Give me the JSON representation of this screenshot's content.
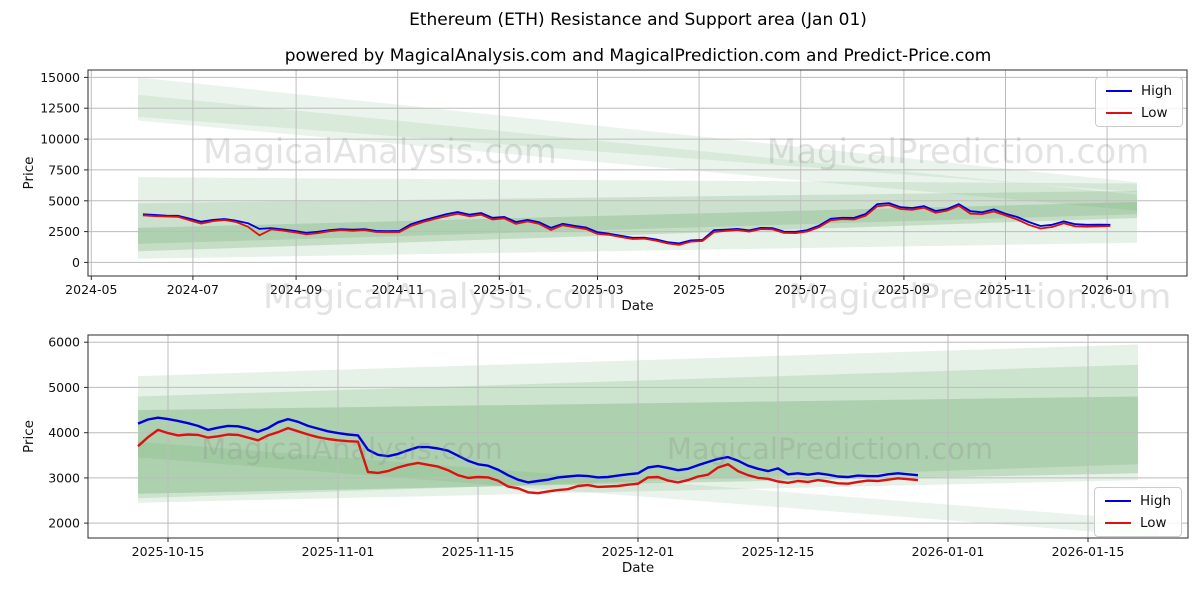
{
  "figure": {
    "title": "Ethereum (ETH) Resistance and Support area (Jan 01)",
    "subtitle": "powered by MagicalAnalysis.com and MagicalPrediction.com and Predict-Price.com"
  },
  "watermarks": {
    "analysis": "MagicalAnalysis.com",
    "prediction": "MagicalPrediction.com"
  },
  "legend": {
    "high": "High",
    "low": "Low"
  },
  "colors": {
    "high": "#0000dd",
    "low": "#dd1111",
    "band": "#3f9142",
    "grid": "#bcbcbc",
    "spine": "#2b2b2b",
    "text": "#111111"
  },
  "chart_data": [
    {
      "type": "line",
      "ylabel": "Price",
      "xlabel": "Date",
      "x_domain": [
        "2024-04-29",
        "2026-02-18"
      ],
      "y_domain": [
        -1100,
        15600
      ],
      "y_ticks": [
        0,
        2500,
        5000,
        7500,
        10000,
        12500,
        15000
      ],
      "x_ticks": [
        {
          "d": "2024-05-01",
          "label": "2024-05"
        },
        {
          "d": "2024-07-01",
          "label": "2024-07"
        },
        {
          "d": "2024-09-01",
          "label": "2024-09"
        },
        {
          "d": "2024-11-01",
          "label": "2024-11"
        },
        {
          "d": "2025-01-01",
          "label": "2025-01"
        },
        {
          "d": "2025-03-01",
          "label": "2025-03"
        },
        {
          "d": "2025-05-01",
          "label": "2025-05"
        },
        {
          "d": "2025-07-01",
          "label": "2025-07"
        },
        {
          "d": "2025-09-01",
          "label": "2025-09"
        },
        {
          "d": "2025-11-01",
          "label": "2025-11"
        },
        {
          "d": "2026-01-01",
          "label": "2026-01"
        }
      ],
      "legend_pos": "top-right",
      "series": [
        {
          "name": "High",
          "color": "#0000dd",
          "x_start": "2024-06-01",
          "x_step_days": 7,
          "values": [
            3900,
            3850,
            3800,
            3780,
            3550,
            3300,
            3450,
            3520,
            3380,
            3180,
            2720,
            2780,
            2680,
            2560,
            2400,
            2480,
            2620,
            2700,
            2650,
            2700,
            2560,
            2540,
            2560,
            3100,
            3400,
            3650,
            3900,
            4090,
            3880,
            4010,
            3620,
            3690,
            3280,
            3450,
            3250,
            2810,
            3130,
            2970,
            2830,
            2450,
            2330,
            2170,
            2000,
            2010,
            1870,
            1650,
            1540,
            1790,
            1830,
            2620,
            2660,
            2720,
            2600,
            2800,
            2780,
            2500,
            2480,
            2620,
            2980,
            3540,
            3620,
            3610,
            3930,
            4730,
            4810,
            4480,
            4410,
            4570,
            4170,
            4330,
            4730,
            4150,
            4060,
            4300,
            3950,
            3680,
            3280,
            2950,
            3050,
            3330,
            3100,
            3050,
            3060,
            3050
          ]
        },
        {
          "name": "Low",
          "color": "#dd1111",
          "x_start": "2024-06-01",
          "x_step_days": 7,
          "values": [
            3820,
            3760,
            3720,
            3700,
            3420,
            3150,
            3350,
            3440,
            3280,
            2900,
            2200,
            2680,
            2580,
            2440,
            2280,
            2380,
            2530,
            2620,
            2560,
            2620,
            2470,
            2450,
            2460,
            2950,
            3270,
            3520,
            3750,
            3940,
            3740,
            3870,
            3480,
            3570,
            3120,
            3330,
            3120,
            2630,
            3020,
            2860,
            2700,
            2310,
            2230,
            2060,
            1900,
            1930,
            1770,
            1540,
            1420,
            1690,
            1740,
            2470,
            2560,
            2630,
            2500,
            2700,
            2680,
            2390,
            2380,
            2510,
            2860,
            3410,
            3510,
            3480,
            3780,
            4560,
            4650,
            4330,
            4270,
            4440,
            4020,
            4200,
            4590,
            3950,
            3920,
            4130,
            3810,
            3480,
            3050,
            2750,
            2870,
            3170,
            2920,
            2900,
            2930,
            2950
          ]
        }
      ],
      "bands": [
        {
          "opacity": 0.1,
          "points": [
            [
              "2024-05-29",
              15000
            ],
            [
              "2026-01-19",
              6500
            ],
            [
              "2026-01-19",
              5700
            ],
            [
              "2024-05-29",
              11800
            ]
          ]
        },
        {
          "opacity": 0.1,
          "points": [
            [
              "2024-05-29",
              13600
            ],
            [
              "2026-01-19",
              5500
            ],
            [
              "2026-01-19",
              4200
            ],
            [
              "2024-05-29",
              11500
            ]
          ]
        },
        {
          "opacity": 0.13,
          "points": [
            [
              "2024-05-29",
              6900
            ],
            [
              "2026-01-19",
              6400
            ],
            [
              "2026-01-19",
              1600
            ],
            [
              "2024-05-29",
              300
            ]
          ]
        },
        {
          "opacity": 0.16,
          "points": [
            [
              "2024-05-29",
              4800
            ],
            [
              "2026-01-19",
              5800
            ],
            [
              "2026-01-19",
              3900
            ],
            [
              "2024-05-29",
              1500
            ]
          ]
        },
        {
          "opacity": 0.2,
          "points": [
            [
              "2024-05-29",
              2800
            ],
            [
              "2026-01-19",
              4900
            ],
            [
              "2026-01-19",
              3600
            ],
            [
              "2024-05-29",
              900
            ]
          ]
        }
      ]
    },
    {
      "type": "line",
      "ylabel": "Price",
      "xlabel": "Date",
      "x_domain": [
        "2025-10-07",
        "2026-01-25"
      ],
      "y_domain": [
        1670,
        6160
      ],
      "y_ticks": [
        2000,
        3000,
        4000,
        5000,
        6000
      ],
      "x_ticks": [
        {
          "d": "2025-10-15",
          "label": "2025-10-15"
        },
        {
          "d": "2025-11-01",
          "label": "2025-11-01"
        },
        {
          "d": "2025-11-15",
          "label": "2025-11-15"
        },
        {
          "d": "2025-12-01",
          "label": "2025-12-01"
        },
        {
          "d": "2025-12-15",
          "label": "2025-12-15"
        },
        {
          "d": "2026-01-01",
          "label": "2026-01-01"
        },
        {
          "d": "2026-01-15",
          "label": "2026-01-15"
        }
      ],
      "legend_pos": "bottom-right",
      "series": [
        {
          "name": "High",
          "color": "#0000dd",
          "x_start": "2025-10-12",
          "x_step_days": 1,
          "values": [
            4200,
            4290,
            4330,
            4300,
            4260,
            4210,
            4150,
            4060,
            4110,
            4150,
            4140,
            4090,
            4020,
            4100,
            4230,
            4300,
            4240,
            4150,
            4090,
            4030,
            3990,
            3960,
            3940,
            3620,
            3510,
            3480,
            3530,
            3610,
            3680,
            3680,
            3650,
            3600,
            3490,
            3380,
            3300,
            3270,
            3180,
            3060,
            2960,
            2900,
            2930,
            2960,
            3010,
            3030,
            3050,
            3040,
            3010,
            3020,
            3050,
            3080,
            3100,
            3230,
            3260,
            3220,
            3170,
            3200,
            3280,
            3350,
            3420,
            3460,
            3380,
            3270,
            3200,
            3150,
            3210,
            3080,
            3100,
            3070,
            3100,
            3070,
            3030,
            3020,
            3050,
            3040,
            3040,
            3080,
            3100,
            3080,
            3060
          ]
        },
        {
          "name": "Low",
          "color": "#dd1111",
          "x_start": "2025-10-12",
          "x_step_days": 1,
          "values": [
            3700,
            3900,
            4060,
            3990,
            3940,
            3960,
            3950,
            3890,
            3920,
            3960,
            3950,
            3890,
            3830,
            3940,
            4010,
            4100,
            4030,
            3960,
            3900,
            3860,
            3830,
            3810,
            3800,
            3130,
            3110,
            3150,
            3230,
            3290,
            3330,
            3290,
            3250,
            3170,
            3060,
            3000,
            3020,
            3010,
            2940,
            2810,
            2770,
            2680,
            2660,
            2700,
            2730,
            2750,
            2820,
            2840,
            2800,
            2810,
            2820,
            2850,
            2870,
            3010,
            3020,
            2940,
            2900,
            2950,
            3030,
            3070,
            3230,
            3300,
            3150,
            3060,
            3000,
            2980,
            2920,
            2890,
            2930,
            2910,
            2950,
            2920,
            2880,
            2870,
            2910,
            2940,
            2930,
            2960,
            2990,
            2970,
            2950
          ]
        }
      ],
      "bands": [
        {
          "opacity": 0.13,
          "points": [
            [
              "2025-10-12",
              5250
            ],
            [
              "2026-01-20",
              5950
            ],
            [
              "2026-01-20",
              2950
            ],
            [
              "2025-10-12",
              2450
            ]
          ]
        },
        {
          "opacity": 0.15,
          "points": [
            [
              "2025-10-12",
              4800
            ],
            [
              "2026-01-20",
              5500
            ],
            [
              "2026-01-20",
              3300
            ],
            [
              "2025-10-12",
              2550
            ]
          ]
        },
        {
          "opacity": 0.22,
          "points": [
            [
              "2025-10-12",
              4500
            ],
            [
              "2026-01-20",
              4800
            ],
            [
              "2026-01-20",
              3100
            ],
            [
              "2025-10-12",
              2650
            ]
          ]
        },
        {
          "opacity": 0.1,
          "points": [
            [
              "2025-10-12",
              3800
            ],
            [
              "2026-01-22",
              2050
            ],
            [
              "2026-01-22",
              1700
            ],
            [
              "2025-10-12",
              3450
            ]
          ]
        }
      ]
    }
  ]
}
